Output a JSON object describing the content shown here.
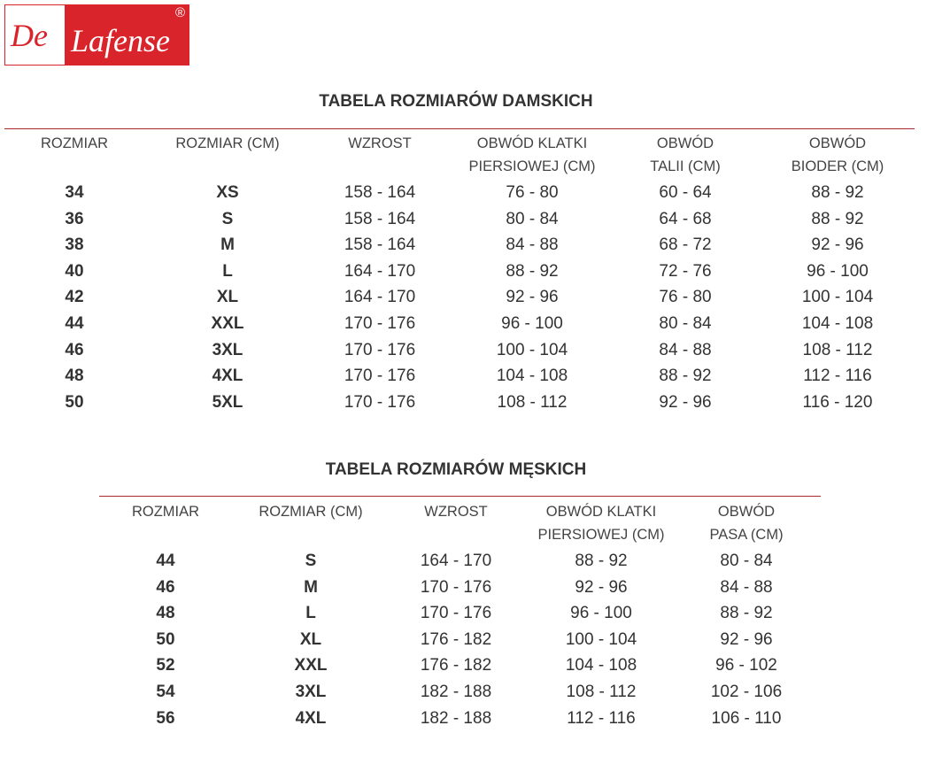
{
  "logo": {
    "text": "De Lafense",
    "mark": "®",
    "colors": {
      "red": "#d9242b"
    }
  },
  "women": {
    "title": "TABELA ROZMIARÓW DAMSKICH",
    "headers": [
      [
        "ROZMIAR",
        ""
      ],
      [
        "ROZMIAR (CM)",
        ""
      ],
      [
        "WZROST",
        ""
      ],
      [
        "OBWÓD KLATKI",
        "PIERSIOWEJ (CM)"
      ],
      [
        "OBWÓD",
        "TALII (CM)"
      ],
      [
        "OBWÓD",
        "BIODER (CM)"
      ]
    ],
    "rows": [
      [
        "34",
        "XS",
        "158 - 164",
        "76 - 80",
        "60 - 64",
        "88 - 92"
      ],
      [
        "36",
        "S",
        "158 - 164",
        "80 - 84",
        "64 - 68",
        "88 - 92"
      ],
      [
        "38",
        "M",
        "158 - 164",
        "84 - 88",
        "68 - 72",
        "92 - 96"
      ],
      [
        "40",
        "L",
        "164 - 170",
        "88 - 92",
        "72 - 76",
        "96 - 100"
      ],
      [
        "42",
        "XL",
        "164 - 170",
        "92 - 96",
        "76 - 80",
        "100 - 104"
      ],
      [
        "44",
        "XXL",
        "170 - 176",
        "96 - 100",
        "80 - 84",
        "104 - 108"
      ],
      [
        "46",
        "3XL",
        "170 - 176",
        "100 - 104",
        "84 - 88",
        "108 - 112"
      ],
      [
        "48",
        "4XL",
        "170 - 176",
        "104 - 108",
        "88 - 92",
        "112 - 116"
      ],
      [
        "50",
        "5XL",
        "170 - 176",
        "108 - 112",
        "92 - 96",
        "116 - 120"
      ]
    ]
  },
  "men": {
    "title": "TABELA ROZMIARÓW MĘSKICH",
    "headers": [
      [
        "ROZMIAR",
        ""
      ],
      [
        "ROZMIAR (CM)",
        ""
      ],
      [
        "WZROST",
        ""
      ],
      [
        "OBWÓD KLATKI",
        "PIERSIOWEJ (CM)"
      ],
      [
        "OBWÓD",
        "PASA (CM)"
      ]
    ],
    "rows": [
      [
        "44",
        "S",
        "164 - 170",
        "88 - 92",
        "80 - 84"
      ],
      [
        "46",
        "M",
        "170 - 176",
        "92 - 96",
        "84 - 88"
      ],
      [
        "48",
        "L",
        "170 - 176",
        "96 - 100",
        "88 - 92"
      ],
      [
        "50",
        "XL",
        "176 - 182",
        "100 - 104",
        "92 - 96"
      ],
      [
        "52",
        "XXL",
        "176 - 182",
        "104 - 108",
        "96 - 102"
      ],
      [
        "54",
        "3XL",
        "182 - 188",
        "108 - 112",
        "102 - 106"
      ],
      [
        "56",
        "4XL",
        "182 - 188",
        "112 - 116",
        "106 - 110"
      ]
    ]
  }
}
